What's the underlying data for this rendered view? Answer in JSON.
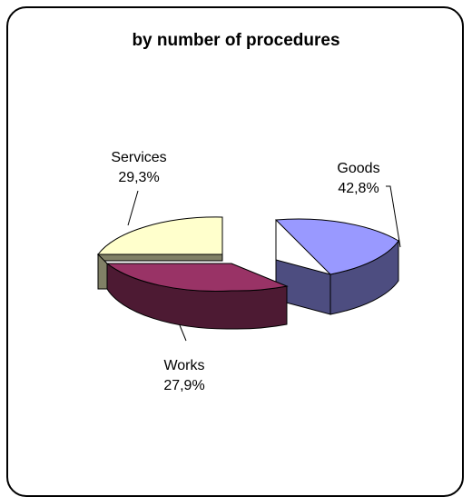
{
  "chart_data": {
    "type": "pie",
    "title": "by number of procedures",
    "slices": [
      {
        "label": "Goods",
        "value": "42,8%",
        "percent": 42.8,
        "color": "#9999ff",
        "side_color": "#4d4d80"
      },
      {
        "label": "Works",
        "value": "27,9%",
        "percent": 27.9,
        "color": "#993366",
        "side_color": "#4d1a33"
      },
      {
        "label": "Services",
        "value": "29,3%",
        "percent": 29.3,
        "color": "#ffffcc",
        "side_color": "#808066"
      }
    ],
    "exploded": true,
    "three_d": true
  }
}
